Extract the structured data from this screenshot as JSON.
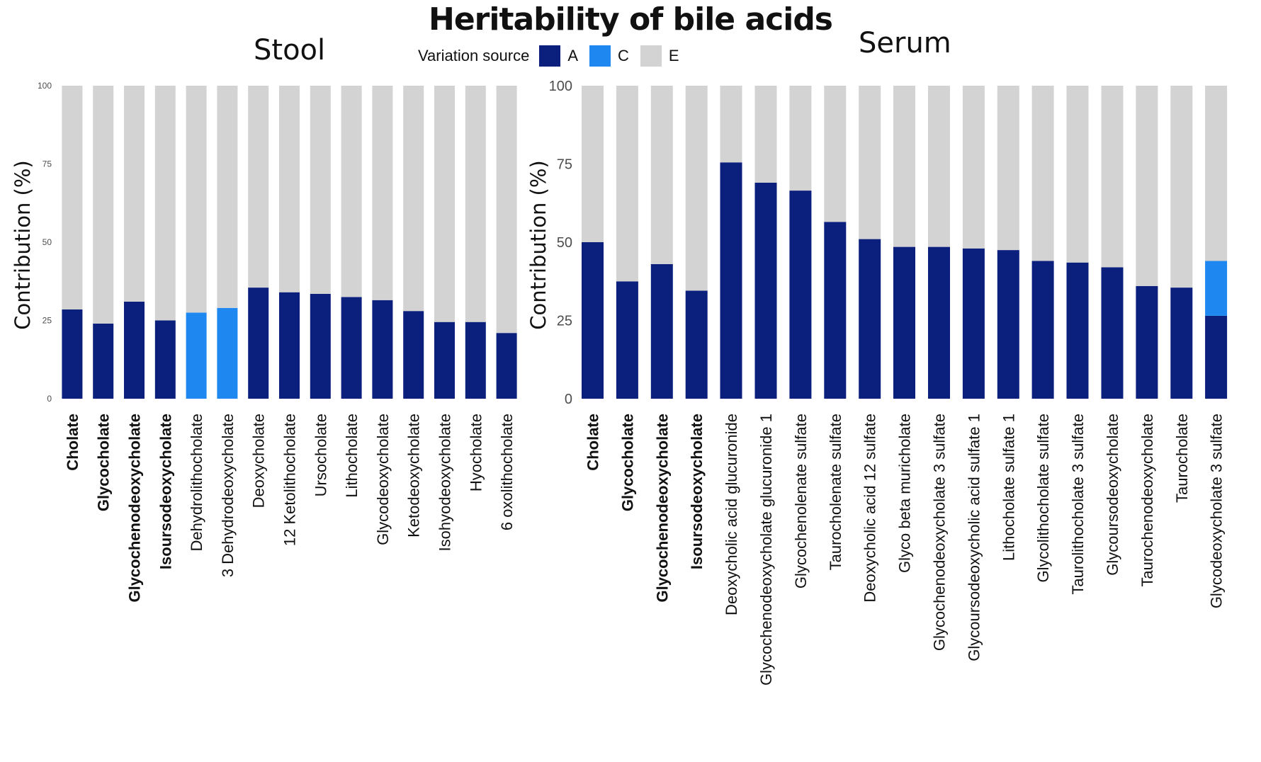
{
  "title": "Heritability of bile acids",
  "legend": {
    "label": "Variation source",
    "items": [
      {
        "name": "A",
        "color": "#0b1f7d"
      },
      {
        "name": "C",
        "color": "#1e88f0"
      },
      {
        "name": "E",
        "color": "#d3d3d3"
      }
    ]
  },
  "chart_data": [
    {
      "type": "bar",
      "stacked": true,
      "title": "Stool",
      "xlabel": "",
      "ylabel": "Contribution (%)",
      "ylim": [
        0,
        100
      ],
      "yticks": [
        "0",
        "25",
        "50",
        "75",
        "100"
      ],
      "categories": [
        "Cholate",
        "Glycocholate",
        "Glycochenodeoxycholate",
        "Isoursodeoxycholate",
        "Dehydrolithocholate",
        "3 Dehydrodeoxycholate",
        "Deoxycholate",
        "12 Ketolithocholate",
        "Ursocholate",
        "Lithocholate",
        "Glycodeoxycholate",
        "Ketodeoxycholate",
        "Isohyodeoxycholate",
        "Hyocholate",
        "6 oxolithocholate"
      ],
      "bold_categories": [
        "Cholate",
        "Glycocholate",
        "Glycochenodeoxycholate",
        "Isoursodeoxycholate"
      ],
      "series": [
        {
          "name": "A",
          "values": [
            28.5,
            24,
            31,
            25,
            0,
            0,
            35.5,
            34,
            33.5,
            32.5,
            31.5,
            28,
            24.5,
            24.5,
            21
          ]
        },
        {
          "name": "C",
          "values": [
            0,
            0,
            0,
            0,
            27.5,
            29,
            0,
            0,
            0,
            0,
            0,
            0,
            0,
            0,
            0
          ]
        },
        {
          "name": "E",
          "values": [
            71.5,
            76,
            69,
            75,
            72.5,
            71,
            64.5,
            66,
            66.5,
            67.5,
            68.5,
            72,
            75.5,
            75.5,
            79
          ]
        }
      ]
    },
    {
      "type": "bar",
      "stacked": true,
      "title": "Serum",
      "xlabel": "",
      "ylabel": "Contribution (%)",
      "ylim": [
        0,
        100
      ],
      "yticks": [
        "0",
        "25",
        "50",
        "75",
        "100"
      ],
      "categories": [
        "Cholate",
        "Glycocholate",
        "Glycochenodeoxycholate",
        "Isoursodeoxycholate",
        "Deoxycholic acid glucuronide",
        "Glycochenodeoxycholate glucuronide 1",
        "Glycochenolenate sulfate",
        "Taurocholenate sulfate",
        "Deoxycholic acid 12 sulfate",
        "Glyco beta muricholate",
        "Glycochenodeoxycholate 3 sulfate",
        "Glycoursodeoxycholic acid sulfate 1",
        "Lithocholate sulfate 1",
        "Glycolithocholate sulfate",
        "Taurolithocholate 3 sulfate",
        "Glycoursodeoxycholate",
        "Taurochenodeoxycholate",
        "Taurocholate",
        "Glycodeoxycholate 3 sulfate"
      ],
      "bold_categories": [
        "Cholate",
        "Glycocholate",
        "Glycochenodeoxycholate",
        "Isoursodeoxycholate"
      ],
      "series": [
        {
          "name": "A",
          "values": [
            50,
            37.5,
            43,
            34.5,
            75.5,
            69,
            66.5,
            56.5,
            51,
            48.5,
            48.5,
            48,
            47.5,
            44,
            43.5,
            42,
            36,
            35.5,
            26.5
          ]
        },
        {
          "name": "C",
          "values": [
            0,
            0,
            0,
            0,
            0,
            0,
            0,
            0,
            0,
            0,
            0,
            0,
            0,
            0,
            0,
            0,
            0,
            0,
            17.5
          ]
        },
        {
          "name": "E",
          "values": [
            50,
            62.5,
            57,
            65.5,
            24.5,
            31,
            33.5,
            43.5,
            49,
            51.5,
            51.5,
            52,
            52.5,
            56,
            56.5,
            58,
            64,
            64.5,
            56
          ]
        }
      ]
    }
  ]
}
